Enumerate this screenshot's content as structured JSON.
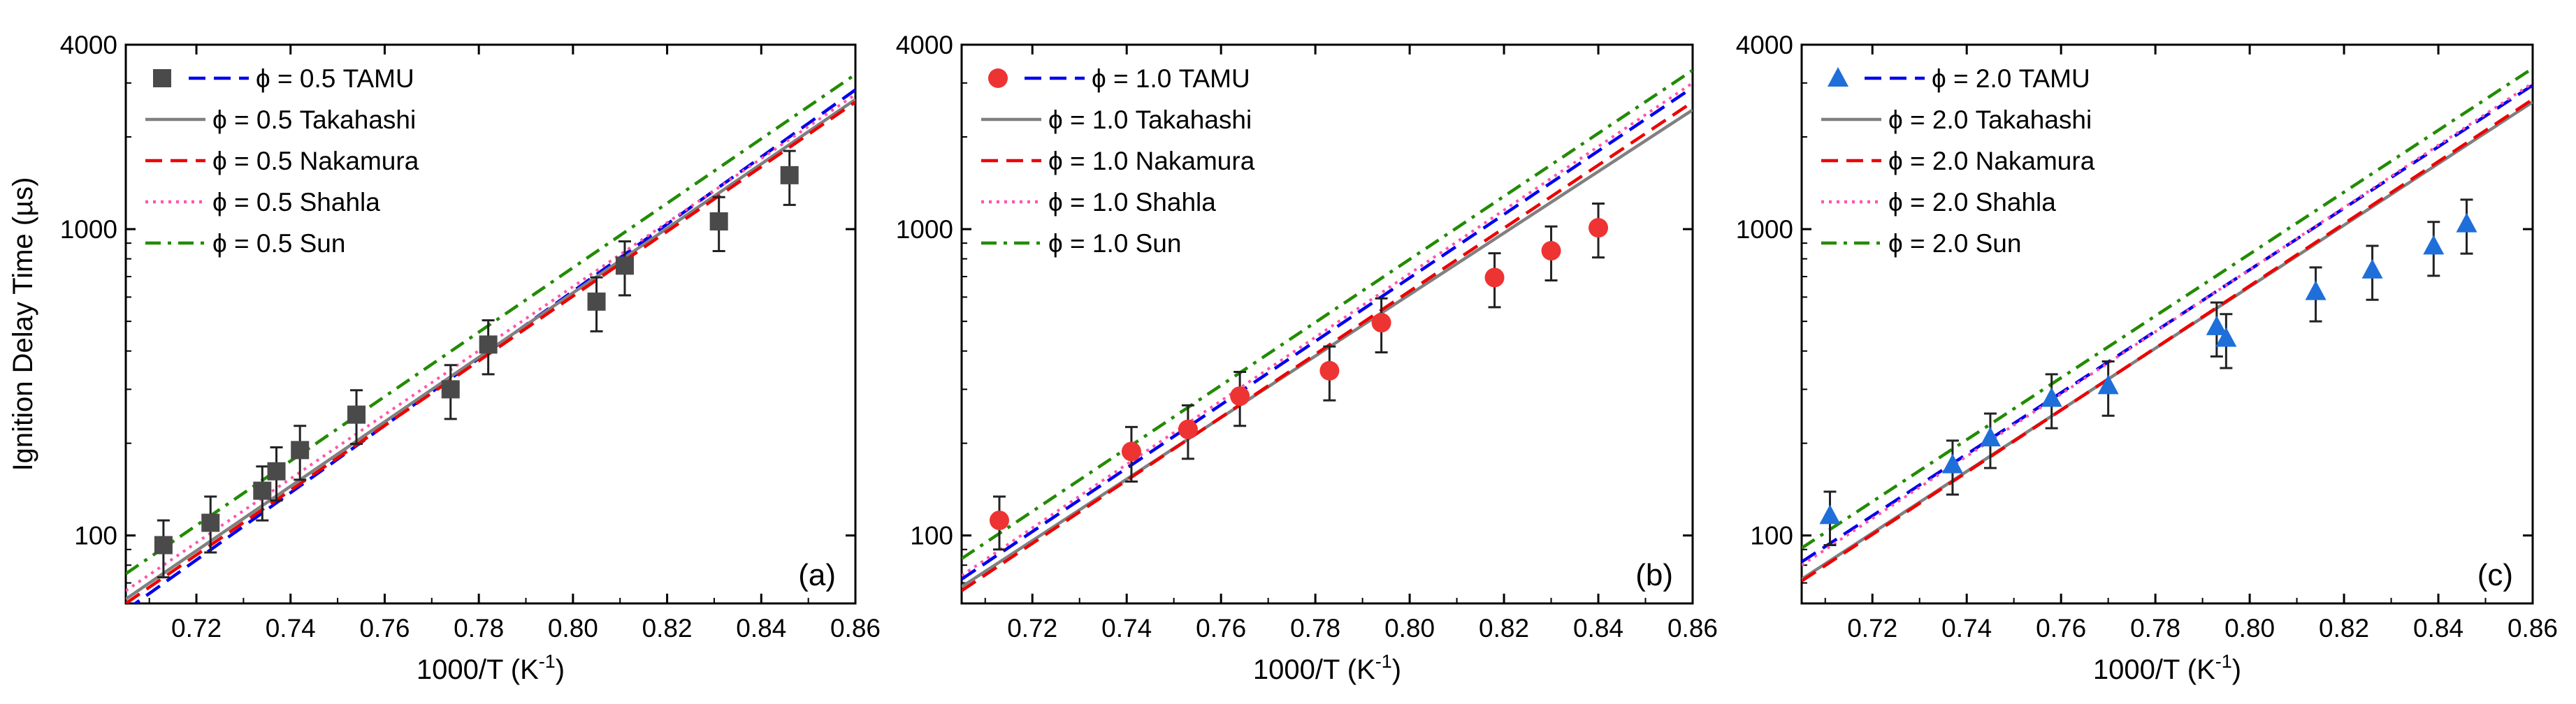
{
  "chart_data": [
    {
      "type": "scatter",
      "panel_label": "(a)",
      "xlabel": "1000/T (K",
      "xlabel_sup": "-1",
      "xlabel_end": ")",
      "ylabel": "Ignition Delay Time (µs)",
      "xlim": [
        0.705,
        0.86
      ],
      "ylim": [
        60,
        4000
      ],
      "yscale": "log",
      "x_ticks": [
        "0.72",
        "0.74",
        "0.76",
        "0.78",
        "0.80",
        "0.82",
        "0.84",
        "0.86"
      ],
      "y_ticks": [
        "100",
        "1000",
        "4000"
      ],
      "legend_position": "top-left",
      "marker": "square",
      "marker_color": "#4a4a4a",
      "experimental": {
        "name": "ϕ = 0.5 TAMU",
        "points": [
          {
            "x": 0.713,
            "y": 93,
            "err_low": 73,
            "err_high": 112
          },
          {
            "x": 0.723,
            "y": 110,
            "err_low": 88,
            "err_high": 134
          },
          {
            "x": 0.734,
            "y": 140,
            "err_low": 112,
            "err_high": 168
          },
          {
            "x": 0.737,
            "y": 162,
            "err_low": 130,
            "err_high": 194
          },
          {
            "x": 0.742,
            "y": 190,
            "err_low": 152,
            "err_high": 228
          },
          {
            "x": 0.754,
            "y": 248,
            "err_low": 199,
            "err_high": 298
          },
          {
            "x": 0.774,
            "y": 300,
            "err_low": 240,
            "err_high": 360
          },
          {
            "x": 0.782,
            "y": 420,
            "err_low": 336,
            "err_high": 504
          },
          {
            "x": 0.805,
            "y": 580,
            "err_low": 464,
            "err_high": 696
          },
          {
            "x": 0.811,
            "y": 760,
            "err_low": 608,
            "err_high": 912
          },
          {
            "x": 0.831,
            "y": 1060,
            "err_low": 848,
            "err_high": 1272
          },
          {
            "x": 0.846,
            "y": 1500,
            "err_low": 1200,
            "err_high": 1800
          }
        ]
      },
      "series": [
        {
          "name": "ϕ = 0.5 TAMU",
          "style": "dashed",
          "color": "#0000ee",
          "x": [
            0.705,
            0.86
          ],
          "y": [
            57,
            2850
          ]
        },
        {
          "name": "ϕ = 0.5 Takahashi",
          "style": "solid",
          "color": "#808080",
          "x": [
            0.705,
            0.86
          ],
          "y": [
            62,
            2650
          ]
        },
        {
          "name": "ϕ = 0.5 Nakamura",
          "style": "dashed",
          "color": "#ee0000",
          "x": [
            0.705,
            0.86
          ],
          "y": [
            60,
            2600
          ]
        },
        {
          "name": "ϕ = 0.5 Shahla",
          "style": "dotted",
          "color": "#ff55aa",
          "x": [
            0.705,
            0.86
          ],
          "y": [
            66,
            2750
          ]
        },
        {
          "name": "ϕ = 0.5 Sun",
          "style": "dashdot",
          "color": "#228b00",
          "x": [
            0.705,
            0.86
          ],
          "y": [
            75,
            3200
          ]
        }
      ]
    },
    {
      "type": "scatter",
      "panel_label": "(b)",
      "xlabel": "1000/T (K",
      "xlabel_sup": "-1",
      "xlabel_end": ")",
      "ylabel": "",
      "xlim": [
        0.705,
        0.86
      ],
      "ylim": [
        60,
        4000
      ],
      "yscale": "log",
      "x_ticks": [
        "0.72",
        "0.74",
        "0.76",
        "0.78",
        "0.80",
        "0.82",
        "0.84",
        "0.86"
      ],
      "y_ticks": [
        "100",
        "1000",
        "4000"
      ],
      "legend_position": "top-left",
      "marker": "circle",
      "marker_color": "#ee3333",
      "experimental": {
        "name": "ϕ = 1.0 TAMU",
        "points": [
          {
            "x": 0.713,
            "y": 112,
            "err_low": 90,
            "err_high": 134
          },
          {
            "x": 0.741,
            "y": 188,
            "err_low": 150,
            "err_high": 226
          },
          {
            "x": 0.753,
            "y": 222,
            "err_low": 178,
            "err_high": 266
          },
          {
            "x": 0.764,
            "y": 285,
            "err_low": 228,
            "err_high": 342
          },
          {
            "x": 0.783,
            "y": 345,
            "err_low": 276,
            "err_high": 414
          },
          {
            "x": 0.794,
            "y": 495,
            "err_low": 396,
            "err_high": 594
          },
          {
            "x": 0.818,
            "y": 695,
            "err_low": 556,
            "err_high": 834
          },
          {
            "x": 0.83,
            "y": 850,
            "err_low": 680,
            "err_high": 1020
          },
          {
            "x": 0.84,
            "y": 1010,
            "err_low": 808,
            "err_high": 1212
          }
        ]
      },
      "series": [
        {
          "name": "ϕ = 1.0 TAMU",
          "style": "dashed",
          "color": "#0000ee",
          "x": [
            0.705,
            0.86
          ],
          "y": [
            72,
            2900
          ]
        },
        {
          "name": "ϕ = 1.0 Takahashi",
          "style": "solid",
          "color": "#808080",
          "x": [
            0.705,
            0.86
          ],
          "y": [
            68,
            2450
          ]
        },
        {
          "name": "ϕ = 1.0 Nakamura",
          "style": "dashed",
          "color": "#ee0000",
          "x": [
            0.705,
            0.86
          ],
          "y": [
            66,
            2600
          ]
        },
        {
          "name": "ϕ = 1.0 Shahla",
          "style": "dotted",
          "color": "#ff55aa",
          "x": [
            0.705,
            0.86
          ],
          "y": [
            74,
            3000
          ]
        },
        {
          "name": "ϕ = 1.0 Sun",
          "style": "dashdot",
          "color": "#228b00",
          "x": [
            0.705,
            0.86
          ],
          "y": [
            84,
            3300
          ]
        }
      ]
    },
    {
      "type": "scatter",
      "panel_label": "(c)",
      "xlabel": "1000/T (K",
      "xlabel_sup": "-1",
      "xlabel_end": ")",
      "ylabel": "",
      "xlim": [
        0.705,
        0.86
      ],
      "ylim": [
        60,
        4000
      ],
      "yscale": "log",
      "x_ticks": [
        "0.72",
        "0.74",
        "0.76",
        "0.78",
        "0.80",
        "0.82",
        "0.84",
        "0.86"
      ],
      "y_ticks": [
        "100",
        "1000",
        "4000"
      ],
      "legend_position": "top-left",
      "marker": "triangle",
      "marker_color": "#1e6fd9",
      "experimental": {
        "name": "ϕ = 2.0 TAMU",
        "points": [
          {
            "x": 0.711,
            "y": 116,
            "err_low": 93,
            "err_high": 139
          },
          {
            "x": 0.737,
            "y": 170,
            "err_low": 136,
            "err_high": 204
          },
          {
            "x": 0.745,
            "y": 208,
            "err_low": 166,
            "err_high": 250
          },
          {
            "x": 0.758,
            "y": 280,
            "err_low": 224,
            "err_high": 336
          },
          {
            "x": 0.77,
            "y": 308,
            "err_low": 246,
            "err_high": 370
          },
          {
            "x": 0.793,
            "y": 480,
            "err_low": 384,
            "err_high": 576
          },
          {
            "x": 0.795,
            "y": 440,
            "err_low": 352,
            "err_high": 528
          },
          {
            "x": 0.814,
            "y": 625,
            "err_low": 500,
            "err_high": 750
          },
          {
            "x": 0.826,
            "y": 735,
            "err_low": 588,
            "err_high": 882
          },
          {
            "x": 0.839,
            "y": 880,
            "err_low": 704,
            "err_high": 1056
          },
          {
            "x": 0.846,
            "y": 1040,
            "err_low": 832,
            "err_high": 1248
          }
        ]
      },
      "series": [
        {
          "name": "ϕ = 2.0 TAMU",
          "style": "dashed",
          "color": "#0000ee",
          "x": [
            0.705,
            0.86
          ],
          "y": [
            82,
            2950
          ]
        },
        {
          "name": "ϕ = 2.0 Takahashi",
          "style": "solid",
          "color": "#808080",
          "x": [
            0.705,
            0.86
          ],
          "y": [
            72,
            2600
          ]
        },
        {
          "name": "ϕ = 2.0 Nakamura",
          "style": "dashed",
          "color": "#ee0000",
          "x": [
            0.705,
            0.86
          ],
          "y": [
            71,
            2650
          ]
        },
        {
          "name": "ϕ = 2.0 Shahla",
          "style": "dotted",
          "color": "#ff55aa",
          "x": [
            0.705,
            0.86
          ],
          "y": [
            80,
            3000
          ]
        },
        {
          "name": "ϕ = 2.0 Sun",
          "style": "dashdot",
          "color": "#228b00",
          "x": [
            0.705,
            0.86
          ],
          "y": [
            91,
            3350
          ]
        }
      ]
    }
  ]
}
